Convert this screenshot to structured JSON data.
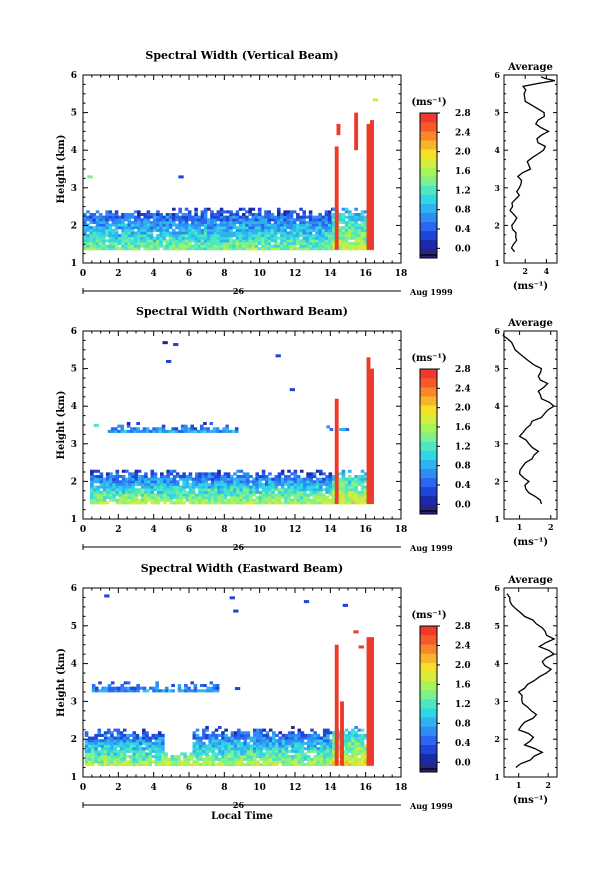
{
  "figure": {
    "date_label": "Aug 1999",
    "day_label": "26",
    "xlabel": "Local Time",
    "avg_title": "Average",
    "avg_unit": "(ms⁻¹)",
    "cb_unit": "(ms⁻¹)",
    "colormap": [
      "#26267e",
      "#1a2aa8",
      "#1f45d6",
      "#2a66f0",
      "#2f8cf5",
      "#2fb2f0",
      "#2fd6e6",
      "#4fe6c0",
      "#7ef08c",
      "#a8f25a",
      "#d6ee3a",
      "#f2e02a",
      "#f8b42a",
      "#f8862a",
      "#f45a2a",
      "#ee3a2a"
    ],
    "colorbar_ticks": [
      "0.0",
      "0.4",
      "0.8",
      "1.2",
      "1.6",
      "2.0",
      "2.4",
      "2.8"
    ]
  },
  "chart_data": [
    {
      "type": "heatmap",
      "title": "Spectral Width (Vertical Beam)",
      "xlabel": "",
      "ylabel": "Height (km)",
      "xlim": [
        0,
        18
      ],
      "ylim": [
        1,
        6
      ],
      "xticks": [
        "0",
        "2",
        "4",
        "6",
        "8",
        "10",
        "12",
        "14",
        "16",
        "18"
      ],
      "yticks": [
        "1",
        "2",
        "3",
        "4",
        "5",
        "6"
      ],
      "zlim": [
        0,
        3.0
      ],
      "bands": [
        {
          "t0": 0.0,
          "t1": 14.1,
          "h0": 1.35,
          "h1": 2.45,
          "v_low": 1.6,
          "v_high": 0.4
        },
        {
          "t0": 14.1,
          "t1": 16.4,
          "h0": 1.35,
          "h1": 2.45,
          "v_low": 1.9,
          "v_high": 1.0
        }
      ],
      "patches": [
        {
          "t": 0.25,
          "h": 3.25,
          "v": 1.6
        },
        {
          "t": 5.4,
          "h": 3.25,
          "v": 0.5
        },
        {
          "t": 16.4,
          "h": 5.3,
          "v": 2.0
        }
      ],
      "spikes": [
        {
          "t": 14.25,
          "h0": 1.35,
          "h1": 4.1,
          "v": 2.9
        },
        {
          "t": 14.35,
          "h0": 4.4,
          "h1": 4.7,
          "v": 2.9
        },
        {
          "t": 15.35,
          "h0": 4.0,
          "h1": 5.0,
          "v": 2.9
        },
        {
          "t": 16.05,
          "h0": 1.35,
          "h1": 4.7,
          "v": 2.9
        },
        {
          "t": 16.25,
          "h0": 1.35,
          "h1": 4.8,
          "v": 2.9
        }
      ],
      "avg_xlim": [
        0,
        5
      ],
      "avg_xticks": [
        "2",
        "4"
      ],
      "avg_profile": {
        "h": [
          1.3,
          1.5,
          1.7,
          1.9,
          2.1,
          2.3,
          2.5,
          2.7,
          2.9,
          3.1,
          3.3,
          3.5,
          3.7,
          3.9,
          4.1,
          4.3,
          4.5,
          4.7,
          4.9,
          5.1,
          5.3,
          5.5,
          5.7,
          5.85,
          5.95
        ],
        "v": [
          1.0,
          0.9,
          1.1,
          0.8,
          1.0,
          0.9,
          0.8,
          1.1,
          1.2,
          1.6,
          1.3,
          2.5,
          2.2,
          3.2,
          3.9,
          3.1,
          4.2,
          3.0,
          3.8,
          3.2,
          2.0,
          1.9,
          1.8,
          4.8,
          3.5
        ]
      }
    },
    {
      "type": "heatmap",
      "title": "Spectral Width (Northward Beam)",
      "xlabel": "",
      "ylabel": "Height (km)",
      "xlim": [
        0,
        18
      ],
      "ylim": [
        1,
        6
      ],
      "xticks": [
        "0",
        "2",
        "4",
        "6",
        "8",
        "10",
        "12",
        "14",
        "16",
        "18"
      ],
      "yticks": [
        "1",
        "2",
        "3",
        "4",
        "5",
        "6"
      ],
      "zlim": [
        0,
        3.0
      ],
      "bands": [
        {
          "t0": 0.4,
          "t1": 14.1,
          "h0": 1.4,
          "h1": 2.3,
          "v_low": 1.8,
          "v_high": 0.4
        },
        {
          "t0": 14.1,
          "t1": 16.4,
          "h0": 1.4,
          "h1": 2.3,
          "v_low": 2.0,
          "v_high": 1.0
        },
        {
          "t0": 1.4,
          "t1": 8.6,
          "h0": 3.3,
          "h1": 3.55,
          "v_low": 0.9,
          "v_high": 0.5
        },
        {
          "t0": 13.6,
          "t1": 15.2,
          "h0": 3.35,
          "h1": 3.5,
          "v_low": 0.9,
          "v_high": 0.5
        }
      ],
      "patches": [
        {
          "t": 4.5,
          "h": 5.65,
          "v": 0.1
        },
        {
          "t": 5.1,
          "h": 5.6,
          "v": 0.4
        },
        {
          "t": 4.7,
          "h": 5.15,
          "v": 0.4
        },
        {
          "t": 10.9,
          "h": 5.3,
          "v": 0.4
        },
        {
          "t": 11.7,
          "h": 4.4,
          "v": 0.5
        },
        {
          "t": 0.6,
          "h": 3.45,
          "v": 1.4
        }
      ],
      "spikes": [
        {
          "t": 14.25,
          "h0": 1.4,
          "h1": 4.2,
          "v": 2.9
        },
        {
          "t": 16.05,
          "h0": 1.4,
          "h1": 5.3,
          "v": 2.9
        },
        {
          "t": 16.25,
          "h0": 1.4,
          "h1": 5.0,
          "v": 2.9
        }
      ],
      "avg_xlim": [
        0.5,
        2.2
      ],
      "avg_xticks": [
        "1",
        "2"
      ],
      "avg_profile": {
        "h": [
          1.4,
          1.6,
          1.8,
          2.0,
          2.2,
          2.4,
          2.6,
          2.8,
          3.0,
          3.2,
          3.4,
          3.6,
          3.8,
          4.0,
          4.2,
          4.4,
          4.6,
          4.8,
          5.0,
          5.2,
          5.4,
          5.6,
          5.8,
          5.95
        ],
        "v": [
          1.7,
          1.5,
          1.2,
          1.3,
          1.0,
          1.1,
          1.4,
          1.6,
          1.3,
          1.0,
          1.2,
          1.4,
          1.8,
          2.1,
          1.7,
          1.6,
          1.9,
          1.6,
          1.7,
          1.3,
          1.0,
          0.8,
          0.6,
          0.5
        ]
      }
    },
    {
      "type": "heatmap",
      "title": "Spectral Width (Eastward Beam)",
      "xlabel": "Local Time",
      "ylabel": "Height (km)",
      "xlim": [
        0,
        18
      ],
      "ylim": [
        1,
        6
      ],
      "xticks": [
        "0",
        "2",
        "4",
        "6",
        "8",
        "10",
        "12",
        "14",
        "16",
        "18"
      ],
      "yticks": [
        "1",
        "2",
        "3",
        "4",
        "5",
        "6"
      ],
      "zlim": [
        0,
        3.0
      ],
      "bands": [
        {
          "t0": 0.1,
          "t1": 4.6,
          "h0": 1.3,
          "h1": 2.25,
          "v_low": 1.8,
          "v_high": 0.4
        },
        {
          "t0": 4.6,
          "t1": 6.2,
          "h0": 1.3,
          "h1": 1.65,
          "v_low": 1.8,
          "v_high": 1.2
        },
        {
          "t0": 6.2,
          "t1": 14.1,
          "h0": 1.3,
          "h1": 2.3,
          "v_low": 1.8,
          "v_high": 0.4
        },
        {
          "t0": 14.1,
          "t1": 16.4,
          "h0": 1.3,
          "h1": 2.3,
          "v_low": 2.1,
          "v_high": 1.0
        },
        {
          "t0": 0.5,
          "t1": 7.6,
          "h0": 3.25,
          "h1": 3.5,
          "v_low": 0.9,
          "v_high": 0.5
        }
      ],
      "patches": [
        {
          "t": 1.2,
          "h": 5.75,
          "v": 0.4
        },
        {
          "t": 8.3,
          "h": 5.7,
          "v": 0.4
        },
        {
          "t": 8.5,
          "h": 5.35,
          "v": 0.4
        },
        {
          "t": 12.5,
          "h": 5.6,
          "v": 0.4
        },
        {
          "t": 14.7,
          "h": 5.5,
          "v": 0.4
        },
        {
          "t": 8.6,
          "h": 3.3,
          "v": 0.5
        },
        {
          "t": 15.3,
          "h": 4.8,
          "v": 2.9
        },
        {
          "t": 15.6,
          "h": 4.4,
          "v": 2.9
        }
      ],
      "spikes": [
        {
          "t": 14.25,
          "h0": 1.3,
          "h1": 4.5,
          "v": 2.9
        },
        {
          "t": 14.55,
          "h0": 1.3,
          "h1": 3.0,
          "v": 2.9
        },
        {
          "t": 16.05,
          "h0": 1.3,
          "h1": 4.7,
          "v": 2.9
        },
        {
          "t": 16.25,
          "h0": 1.3,
          "h1": 4.7,
          "v": 2.9
        }
      ],
      "avg_xlim": [
        0.5,
        2.3
      ],
      "avg_xticks": [
        "1",
        "2"
      ],
      "avg_profile": {
        "h": [
          1.25,
          1.45,
          1.65,
          1.85,
          2.05,
          2.25,
          2.45,
          2.65,
          2.85,
          3.05,
          3.25,
          3.45,
          3.65,
          3.85,
          4.05,
          4.25,
          4.45,
          4.65,
          4.85,
          5.05,
          5.25,
          5.45,
          5.65,
          5.85
        ],
        "v": [
          0.9,
          1.4,
          1.8,
          1.2,
          1.5,
          1.0,
          1.2,
          1.6,
          1.3,
          1.1,
          1.0,
          1.3,
          1.7,
          2.1,
          1.8,
          2.2,
          1.7,
          2.2,
          1.9,
          1.6,
          1.2,
          0.9,
          0.7,
          0.6
        ]
      }
    }
  ]
}
